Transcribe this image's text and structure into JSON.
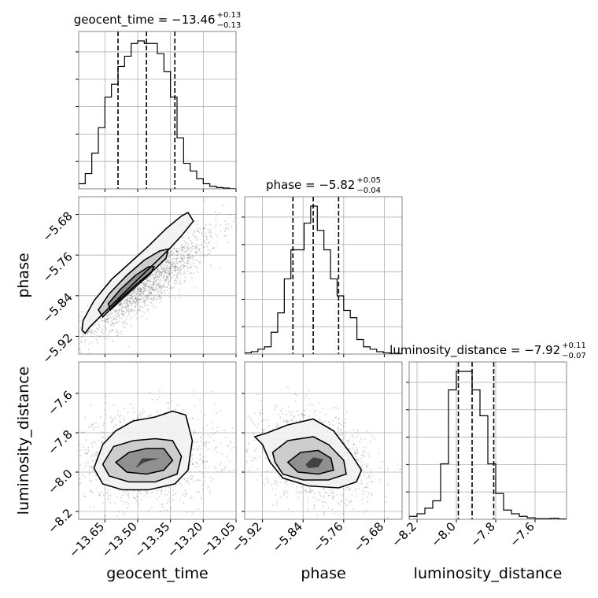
{
  "chart_data": {
    "type": "corner",
    "parameters": [
      "geocent_time",
      "phase",
      "luminosity_distance"
    ],
    "ranges": {
      "geocent_time": [
        -13.77,
        -13.05
      ],
      "phase": [
        -5.955,
        -5.645
      ],
      "luminosity_distance": [
        -8.24,
        -7.44
      ]
    },
    "ticks": {
      "geocent_time": [
        -13.65,
        -13.5,
        -13.35,
        -13.2,
        -13.05
      ],
      "phase": [
        -5.92,
        -5.84,
        -5.76,
        -5.68
      ],
      "luminosity_distance": [
        -8.2,
        -8.0,
        -7.8,
        -7.6
      ]
    },
    "tick_labels": {
      "geocent_time": [
        "−13.65",
        "−13.50",
        "−13.35",
        "−13.20",
        "−13.05"
      ],
      "phase": [
        "−5.92",
        "−5.84",
        "−5.76",
        "−5.68"
      ],
      "luminosity_distance": [
        "−8.2",
        "−8.0",
        "−7.8",
        "−7.6"
      ]
    },
    "titles": [
      {
        "param": "geocent_time",
        "label": "geocent_time = −13.46",
        "plus": "+0.13",
        "minus": "−0.13"
      },
      {
        "param": "phase",
        "label": "phase = −5.82",
        "plus": "+0.05",
        "minus": "−0.04"
      },
      {
        "param": "luminosity_distance",
        "label": "luminosity_distance = −7.92",
        "plus": "+0.11",
        "minus": "−0.07"
      }
    ],
    "quantiles": {
      "geocent_time": [
        -13.59,
        -13.46,
        -13.33
      ],
      "phase": [
        -5.86,
        -5.82,
        -5.77
      ],
      "luminosity_distance": [
        -7.99,
        -7.92,
        -7.81
      ]
    },
    "histograms": {
      "geocent_time": {
        "edges": [
          -13.77,
          -13.74,
          -13.71,
          -13.68,
          -13.65,
          -13.62,
          -13.59,
          -13.56,
          -13.53,
          -13.5,
          -13.47,
          -13.44,
          -13.41,
          -13.38,
          -13.35,
          -13.32,
          -13.29,
          -13.26,
          -13.23,
          -13.2,
          -13.17,
          -13.14,
          -13.11,
          -13.08,
          -13.05
        ],
        "counts": [
          2,
          6,
          14,
          24,
          36,
          41,
          48,
          52,
          57,
          58,
          57,
          57,
          53,
          46,
          36,
          20,
          10,
          7,
          4,
          2,
          1,
          0.5,
          0.3,
          0.1
        ]
      },
      "phase": {
        "edges": [
          -5.955,
          -5.942,
          -5.929,
          -5.916,
          -5.903,
          -5.89,
          -5.877,
          -5.864,
          -5.851,
          -5.838,
          -5.825,
          -5.812,
          -5.799,
          -5.786,
          -5.773,
          -5.76,
          -5.747,
          -5.734,
          -5.721,
          -5.708,
          -5.695,
          -5.682,
          -5.669,
          -5.656,
          -5.643
        ],
        "counts": [
          0.5,
          1,
          2,
          3,
          9,
          17,
          31,
          43,
          43,
          54,
          61,
          51,
          43,
          31,
          24,
          18,
          15,
          6,
          3,
          2,
          1,
          0.5,
          0.3,
          0.2
        ]
      },
      "luminosity_distance": {
        "edges": [
          -8.24,
          -8.2,
          -8.16,
          -8.12,
          -8.08,
          -8.04,
          -8.0,
          -7.96,
          -7.92,
          -7.88,
          -7.84,
          -7.8,
          -7.76,
          -7.72,
          -7.68,
          -7.64,
          -7.6,
          -7.56,
          -7.52,
          -7.48,
          -7.44
        ],
        "counts": [
          0.8,
          1.5,
          3,
          5,
          15,
          35,
          40,
          40,
          35,
          28,
          15,
          7,
          2.5,
          1.5,
          0.8,
          0.4,
          0.2,
          0.2,
          0.3,
          0.1
        ]
      }
    },
    "pairs": [
      {
        "x": "geocent_time",
        "y": "phase",
        "correlation": 0.9,
        "sigma_levels": [
          [
            [
              -13.74,
              -5.914
            ],
            [
              -13.72,
              -5.902
            ],
            [
              -13.66,
              -5.876
            ],
            [
              -13.58,
              -5.842
            ],
            [
              -13.5,
              -5.808
            ],
            [
              -13.42,
              -5.775
            ],
            [
              -13.36,
              -5.75
            ],
            [
              -13.3,
              -5.722
            ],
            [
              -13.245,
              -5.693
            ],
            [
              -13.27,
              -5.676
            ],
            [
              -13.3,
              -5.683
            ],
            [
              -13.37,
              -5.708
            ],
            [
              -13.45,
              -5.742
            ],
            [
              -13.53,
              -5.773
            ],
            [
              -13.62,
              -5.808
            ],
            [
              -13.7,
              -5.85
            ],
            [
              -13.75,
              -5.889
            ],
            [
              -13.755,
              -5.908
            ]
          ],
          [
            [
              -13.66,
              -5.882
            ],
            [
              -13.58,
              -5.846
            ],
            [
              -13.5,
              -5.815
            ],
            [
              -13.42,
              -5.787
            ],
            [
              -13.37,
              -5.766
            ],
            [
              -13.36,
              -5.748
            ],
            [
              -13.4,
              -5.752
            ],
            [
              -13.47,
              -5.77
            ],
            [
              -13.55,
              -5.8
            ],
            [
              -13.63,
              -5.836
            ],
            [
              -13.68,
              -5.868
            ]
          ],
          [
            [
              -13.625,
              -5.868
            ],
            [
              -13.56,
              -5.842
            ],
            [
              -13.49,
              -5.815
            ],
            [
              -13.44,
              -5.796
            ],
            [
              -13.425,
              -5.783
            ],
            [
              -13.45,
              -5.783
            ],
            [
              -13.51,
              -5.8
            ],
            [
              -13.58,
              -5.828
            ],
            [
              -13.635,
              -5.856
            ]
          ]
        ]
      },
      {
        "x": "geocent_time",
        "y": "luminosity_distance",
        "correlation": 0.05,
        "sigma_levels": [
          [
            [
              -13.7,
              -7.98
            ],
            [
              -13.66,
              -7.86
            ],
            [
              -13.6,
              -7.79
            ],
            [
              -13.52,
              -7.74
            ],
            [
              -13.42,
              -7.72
            ],
            [
              -13.34,
              -7.69
            ],
            [
              -13.28,
              -7.71
            ],
            [
              -13.25,
              -7.84
            ],
            [
              -13.27,
              -7.99
            ],
            [
              -13.33,
              -8.06
            ],
            [
              -13.45,
              -8.09
            ],
            [
              -13.57,
              -8.09
            ],
            [
              -13.66,
              -8.06
            ]
          ],
          [
            [
              -13.66,
              -7.96
            ],
            [
              -13.61,
              -7.87
            ],
            [
              -13.52,
              -7.84
            ],
            [
              -13.42,
              -7.83
            ],
            [
              -13.34,
              -7.84
            ],
            [
              -13.3,
              -7.92
            ],
            [
              -13.32,
              -8.01
            ],
            [
              -13.42,
              -8.05
            ],
            [
              -13.54,
              -8.05
            ],
            [
              -13.63,
              -8.02
            ]
          ],
          [
            [
              -13.6,
              -7.95
            ],
            [
              -13.54,
              -7.9
            ],
            [
              -13.46,
              -7.88
            ],
            [
              -13.38,
              -7.88
            ],
            [
              -13.34,
              -7.94
            ],
            [
              -13.38,
              -7.99
            ],
            [
              -13.46,
              -8.01
            ],
            [
              -13.55,
              -8.0
            ]
          ],
          [
            [
              -13.51,
              -7.98
            ],
            [
              -13.48,
              -7.93
            ],
            [
              -13.4,
              -7.93
            ],
            [
              -13.47,
              -7.95
            ]
          ]
        ]
      },
      {
        "x": "phase",
        "y": "luminosity_distance",
        "correlation": -0.3,
        "sigma_levels": [
          [
            [
              -5.935,
              -7.82
            ],
            [
              -5.91,
              -7.8
            ],
            [
              -5.87,
              -7.76
            ],
            [
              -5.82,
              -7.73
            ],
            [
              -5.78,
              -7.79
            ],
            [
              -5.745,
              -7.91
            ],
            [
              -5.725,
              -7.99
            ],
            [
              -5.735,
              -8.05
            ],
            [
              -5.77,
              -8.08
            ],
            [
              -5.83,
              -8.07
            ],
            [
              -5.88,
              -8.03
            ],
            [
              -5.905,
              -7.95
            ],
            [
              -5.92,
              -7.86
            ]
          ],
          [
            [
              -5.9,
              -7.9
            ],
            [
              -5.87,
              -7.84
            ],
            [
              -5.82,
              -7.82
            ],
            [
              -5.79,
              -7.86
            ],
            [
              -5.76,
              -7.94
            ],
            [
              -5.755,
              -8.01
            ],
            [
              -5.79,
              -8.04
            ],
            [
              -5.84,
              -8.04
            ],
            [
              -5.88,
              -8.01
            ],
            [
              -5.895,
              -7.95
            ]
          ],
          [
            [
              -5.87,
              -7.95
            ],
            [
              -5.845,
              -7.9
            ],
            [
              -5.81,
              -7.89
            ],
            [
              -5.785,
              -7.93
            ],
            [
              -5.78,
              -7.99
            ],
            [
              -5.81,
              -8.01
            ],
            [
              -5.85,
              -8.0
            ]
          ],
          [
            [
              -5.835,
              -7.96
            ],
            [
              -5.82,
              -7.925
            ],
            [
              -5.8,
              -7.935
            ],
            [
              -5.81,
              -7.975
            ],
            [
              -5.83,
              -7.98
            ]
          ]
        ]
      }
    ],
    "grid": true,
    "contour_levels": 3
  }
}
